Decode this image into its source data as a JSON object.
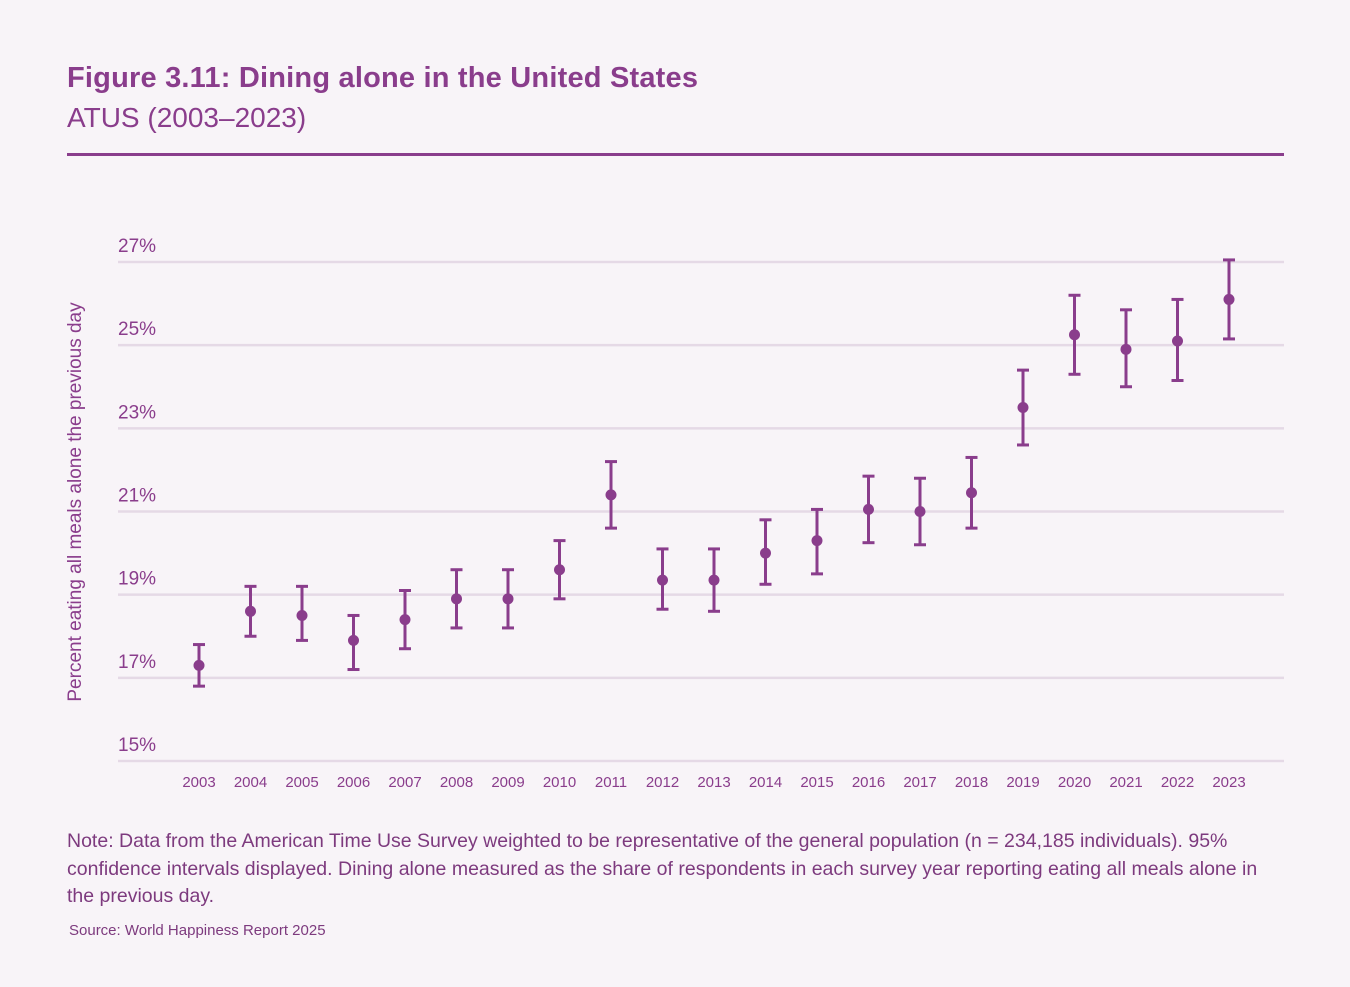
{
  "header": {
    "title": "Figure 3.11: Dining alone in the United States",
    "subtitle": "ATUS (2003–2023)"
  },
  "note": "Note: Data from the American Time Use Survey weighted to be representative of the general population (n = 234,185 individuals). 95% confidence intervals displayed. Dining alone measured as the share of respondents in each survey year reporting eating all meals alone in the previous day.",
  "source": "Source: World Happiness Report 2025",
  "colors": {
    "accent": "#8a3d8c",
    "grid": "#e5d9e6",
    "background": "#f8f4f8"
  },
  "chart_data": {
    "type": "scatter",
    "subtype": "point-with-error-bars",
    "title": "Figure 3.11: Dining alone in the United States",
    "subtitle": "ATUS (2003–2023)",
    "xlabel": "",
    "ylabel": "Percent eating all meals alone the previous day",
    "ylim": [
      15,
      27
    ],
    "yticks": [
      15,
      17,
      19,
      21,
      23,
      25,
      27
    ],
    "ytick_labels": [
      "15%",
      "17%",
      "19%",
      "21%",
      "23%",
      "25%",
      "27%"
    ],
    "grid": "horizontal",
    "legend": "none",
    "categories": [
      "2003",
      "2004",
      "2005",
      "2006",
      "2007",
      "2008",
      "2009",
      "2010",
      "2011",
      "2012",
      "2013",
      "2014",
      "2015",
      "2016",
      "2017",
      "2018",
      "2019",
      "2020",
      "2021",
      "2022",
      "2023"
    ],
    "series": [
      {
        "name": "Percent eating all meals alone",
        "values": [
          17.3,
          18.6,
          18.5,
          17.9,
          18.4,
          18.9,
          18.9,
          19.6,
          21.4,
          19.35,
          19.35,
          20.0,
          20.3,
          21.05,
          21.0,
          21.45,
          23.5,
          25.25,
          24.9,
          25.1,
          26.1
        ],
        "ci_low": [
          16.8,
          18.0,
          17.9,
          17.2,
          17.7,
          18.2,
          18.2,
          18.9,
          20.6,
          18.65,
          18.6,
          19.25,
          19.5,
          20.25,
          20.2,
          20.6,
          22.6,
          24.3,
          24.0,
          24.15,
          25.15
        ],
        "ci_high": [
          17.8,
          19.2,
          19.2,
          18.5,
          19.1,
          19.6,
          19.6,
          20.3,
          22.2,
          20.1,
          20.1,
          20.8,
          21.05,
          21.85,
          21.8,
          22.3,
          24.4,
          26.2,
          25.85,
          26.1,
          27.05
        ]
      }
    ]
  }
}
